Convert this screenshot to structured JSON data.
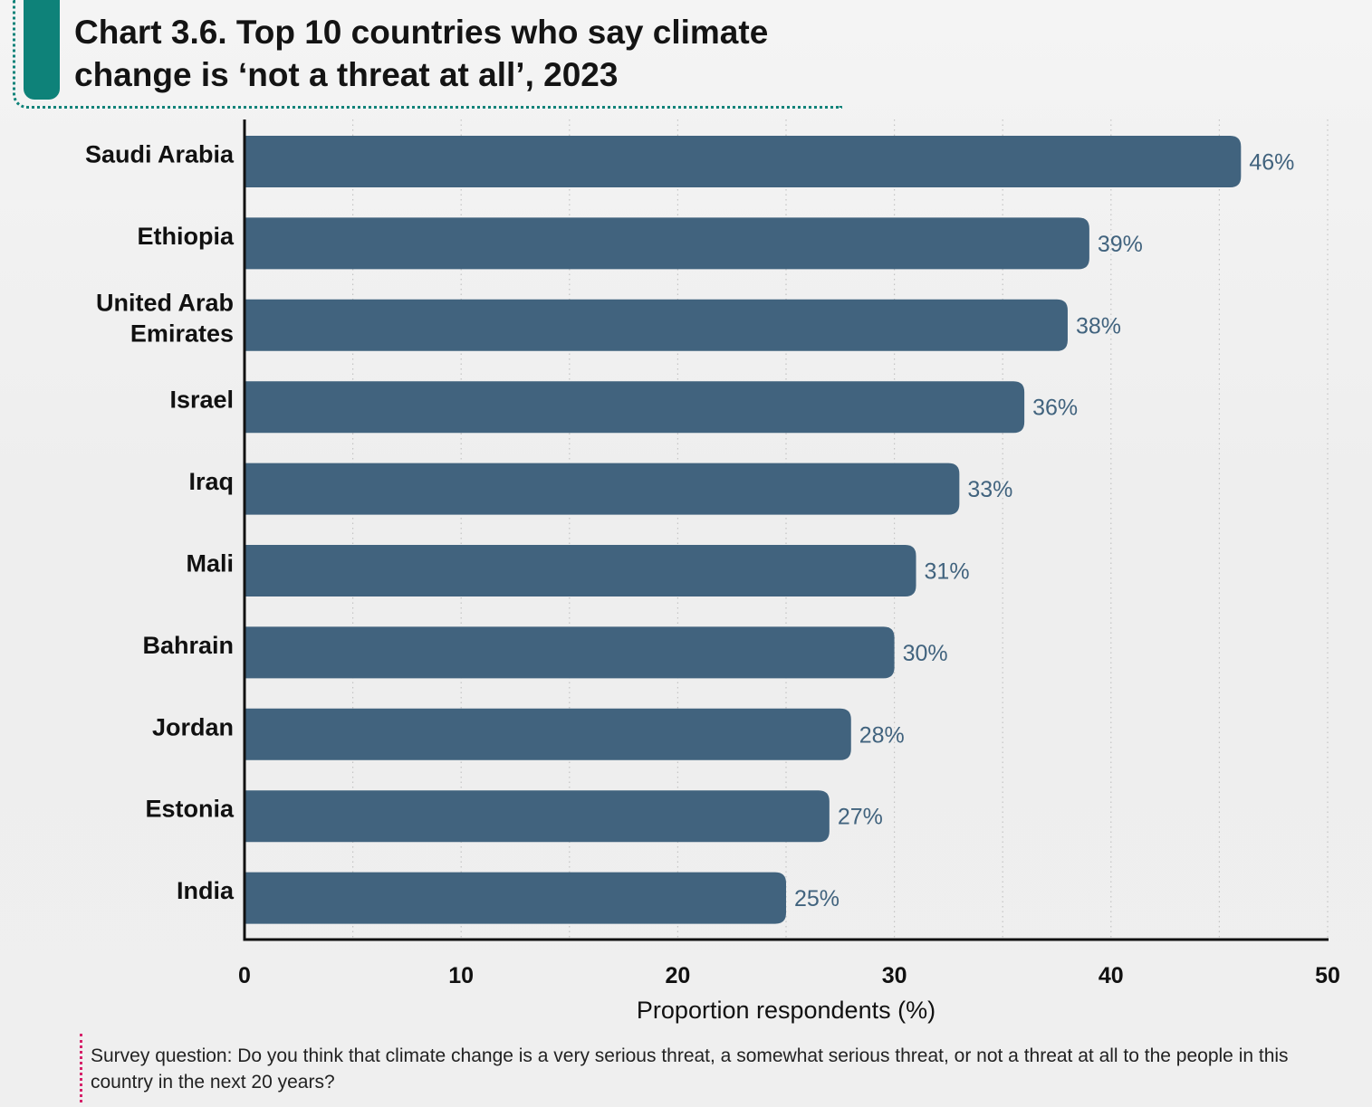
{
  "chart_data": {
    "type": "bar",
    "orientation": "horizontal",
    "title": "Chart 3.6. Top 10 countries who say climate change is ‘not a threat at all’, 2023",
    "categories": [
      [
        "Saudi Arabia"
      ],
      [
        "Ethiopia"
      ],
      [
        "United Arab",
        "Emirates"
      ],
      [
        "Israel"
      ],
      [
        "Iraq"
      ],
      [
        "Mali"
      ],
      [
        "Bahrain"
      ],
      [
        "Jordan"
      ],
      [
        "Estonia"
      ],
      [
        "India"
      ]
    ],
    "values": [
      46,
      39,
      38,
      36,
      33,
      31,
      30,
      28,
      27,
      25
    ],
    "data_labels": [
      "46%",
      "39%",
      "38%",
      "36%",
      "33%",
      "31%",
      "30%",
      "28%",
      "27%",
      "25%"
    ],
    "xlabel": "Proportion respondents (%)",
    "ylabel": "",
    "xlim": [
      0,
      50
    ],
    "xticks": [
      0,
      10,
      20,
      30,
      40,
      50
    ],
    "grid": "vertical-dotted",
    "legend": "none",
    "colors": {
      "bar": "#41637e",
      "value_label": "#41637e",
      "axis": "#111111",
      "grid": "#c4c4c4"
    }
  },
  "footnote": "Survey question: Do you think that climate change is a very serious threat, a somewhat serious threat, or not a threat at all to the people in this country in the next 20 years?",
  "colors": {
    "accent_teal": "#0e8279",
    "footnote_rule": "#d6226a"
  }
}
